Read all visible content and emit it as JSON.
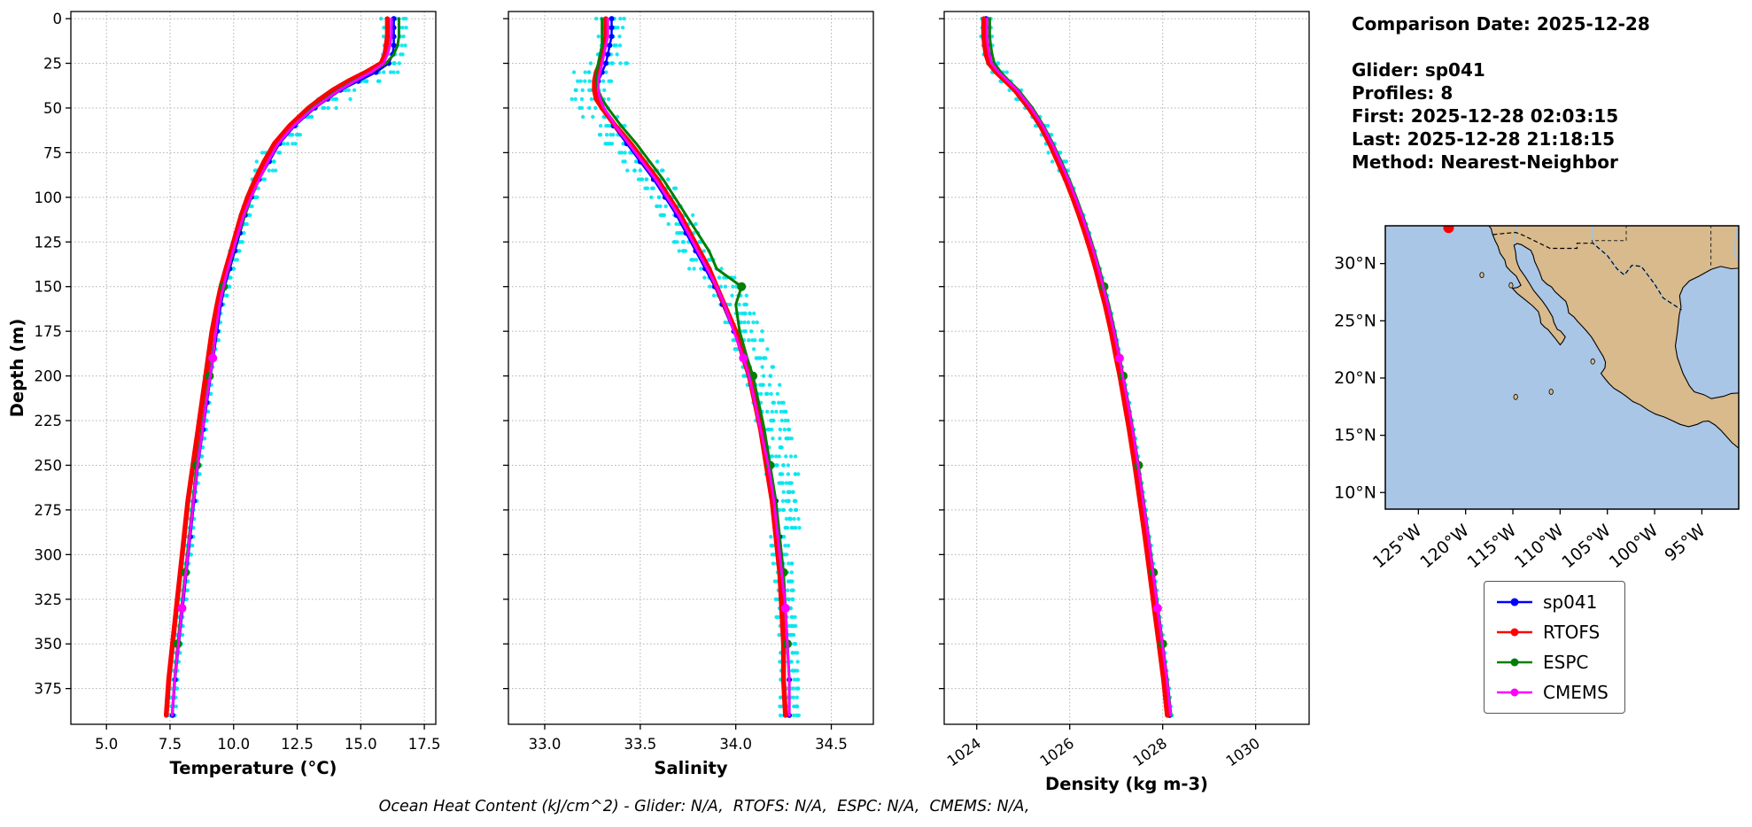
{
  "info_panel": {
    "comparison_date": "Comparison Date: 2025-12-28",
    "glider": "Glider: sp041",
    "profiles": "Profiles: 8",
    "first": "First: 2025-12-28 02:03:15",
    "last": "Last: 2025-12-28 21:18:15",
    "method": "Method: Nearest-Neighbor"
  },
  "footer_note": "Ocean Heat Content (kJ/cm^2) - Glider: N/A,  RTOFS: N/A,  ESPC: N/A,  CMEMS: N/A,",
  "legend": {
    "items": [
      {
        "label": "sp041",
        "color": "#0000ff"
      },
      {
        "label": "RTOFS",
        "color": "#ff0000"
      },
      {
        "label": "ESPC",
        "color": "#007f00"
      },
      {
        "label": "CMEMS",
        "color": "#ff00ff"
      }
    ]
  },
  "map": {
    "ocean_color": "#a9c6e6",
    "land_color": "#d9ba8c",
    "glider_marker_color": "#ff0000",
    "lat_ticks": [
      {
        "label": "30°N",
        "value": 30
      },
      {
        "label": "25°N",
        "value": 25
      },
      {
        "label": "20°N",
        "value": 20
      },
      {
        "label": "15°N",
        "value": 15
      },
      {
        "label": "10°N",
        "value": 10
      }
    ],
    "lon_ticks": [
      {
        "label": "125°W",
        "value": -125
      },
      {
        "label": "120°W",
        "value": -120
      },
      {
        "label": "115°W",
        "value": -115
      },
      {
        "label": "110°W",
        "value": -110
      },
      {
        "label": "105°W",
        "value": -105
      },
      {
        "label": "100°W",
        "value": -100
      },
      {
        "label": "95°W",
        "value": -95
      }
    ]
  },
  "chart_data": [
    {
      "type": "line",
      "name": "temperature",
      "xlabel": "Temperature (°C)",
      "ylabel": "Depth (m)",
      "xlim": [
        3.6,
        17.95
      ],
      "ylim": [
        -4,
        395
      ],
      "xticks": {
        "values": [
          5.0,
          7.5,
          10.0,
          12.5,
          15.0,
          17.5
        ],
        "labels": [
          "5.0",
          "7.5",
          "10.0",
          "12.5",
          "15.0",
          "17.5"
        ],
        "rotate": false
      },
      "yticks": {
        "values": [
          0,
          25,
          50,
          75,
          100,
          125,
          150,
          175,
          200,
          225,
          250,
          275,
          300,
          325,
          350,
          375
        ],
        "labels": [
          "0",
          "25",
          "50",
          "75",
          "100",
          "125",
          "150",
          "175",
          "200",
          "225",
          "250",
          "275",
          "300",
          "325",
          "350",
          "375"
        ]
      },
      "depths": [
        0,
        5,
        10,
        15,
        20,
        25,
        30,
        35,
        40,
        45,
        50,
        60,
        70,
        80,
        90,
        100,
        110,
        120,
        130,
        140,
        150,
        160,
        175,
        190,
        200,
        215,
        230,
        250,
        270,
        290,
        310,
        330,
        350,
        370,
        390
      ],
      "series": [
        {
          "name": "sp041",
          "color": "#0000ff",
          "values": [
            16.3,
            16.3,
            16.3,
            16.3,
            16.25,
            16.1,
            15.6,
            14.9,
            14.2,
            13.7,
            13.2,
            12.4,
            11.8,
            11.4,
            11.0,
            10.7,
            10.45,
            10.25,
            10.05,
            9.85,
            9.65,
            9.5,
            9.35,
            9.2,
            9.1,
            8.95,
            8.8,
            8.6,
            8.45,
            8.3,
            8.15,
            8.0,
            7.85,
            7.7,
            7.6
          ]
        },
        {
          "name": "RTOFS",
          "color": "#ff0000",
          "values": [
            16.05,
            16.05,
            16.05,
            16.0,
            15.95,
            15.8,
            15.2,
            14.5,
            13.9,
            13.4,
            12.95,
            12.2,
            11.6,
            11.2,
            10.85,
            10.55,
            10.3,
            10.1,
            9.9,
            9.7,
            9.5,
            9.35,
            9.15,
            9.0,
            8.9,
            8.75,
            8.6,
            8.4,
            8.2,
            8.05,
            7.9,
            7.75,
            7.6,
            7.45,
            7.35
          ]
        },
        {
          "name": "ESPC",
          "color": "#007f00",
          "values": [
            16.5,
            16.5,
            16.5,
            16.45,
            16.3,
            16.0,
            15.4,
            14.7,
            14.1,
            13.6,
            13.1,
            12.35,
            11.75,
            11.35,
            11.0,
            10.7,
            10.45,
            10.2,
            10.0,
            9.8,
            9.6,
            9.45,
            9.3,
            9.15,
            9.05,
            8.9,
            8.75,
            8.55,
            8.4,
            8.25,
            8.1,
            7.95,
            7.8,
            7.68,
            7.58
          ]
        },
        {
          "name": "CMEMS",
          "color": "#ff00ff",
          "values": [
            16.2,
            16.2,
            16.2,
            16.15,
            16.05,
            15.9,
            15.4,
            14.75,
            14.15,
            13.65,
            13.15,
            12.35,
            11.75,
            11.35,
            11.0,
            10.68,
            10.4,
            10.18,
            9.98,
            9.78,
            9.6,
            9.45,
            9.3,
            9.18,
            9.08,
            8.92,
            8.78,
            8.58,
            8.42,
            8.27,
            8.12,
            7.97,
            7.83,
            7.68,
            7.58
          ]
        }
      ],
      "scatter": {
        "name": "glider-raw-measurements",
        "color": "#00e5ee"
      }
    },
    {
      "type": "line",
      "name": "salinity",
      "xlabel": "Salinity",
      "ylabel": "Depth (m)",
      "xlim": [
        32.81,
        34.72
      ],
      "ylim": [
        -4,
        395
      ],
      "xticks": {
        "values": [
          33.0,
          33.5,
          34.0,
          34.5
        ],
        "labels": [
          "33.0",
          "33.5",
          "34.0",
          "34.5"
        ],
        "rotate": false
      },
      "yticks": {
        "values": [
          0,
          25,
          50,
          75,
          100,
          125,
          150,
          175,
          200,
          225,
          250,
          275,
          300,
          325,
          350,
          375
        ],
        "labels": [
          "0",
          "25",
          "50",
          "75",
          "100",
          "125",
          "150",
          "175",
          "200",
          "225",
          "250",
          "275",
          "300",
          "325",
          "350",
          "375"
        ]
      },
      "depths": [
        0,
        5,
        10,
        15,
        20,
        25,
        30,
        35,
        40,
        45,
        50,
        60,
        70,
        80,
        90,
        100,
        110,
        120,
        130,
        140,
        150,
        160,
        175,
        190,
        200,
        215,
        230,
        250,
        270,
        290,
        310,
        330,
        350,
        370,
        390
      ],
      "series": [
        {
          "name": "sp041",
          "color": "#0000ff",
          "values": [
            33.35,
            33.35,
            33.35,
            33.34,
            33.33,
            33.32,
            33.3,
            33.28,
            33.27,
            33.28,
            33.3,
            33.36,
            33.43,
            33.5,
            33.57,
            33.63,
            33.69,
            33.74,
            33.79,
            33.84,
            33.89,
            33.93,
            33.99,
            34.04,
            34.07,
            34.11,
            34.14,
            34.18,
            34.21,
            34.23,
            34.25,
            34.26,
            34.27,
            34.28,
            34.28
          ]
        },
        {
          "name": "RTOFS",
          "color": "#ff0000",
          "values": [
            33.32,
            33.32,
            33.32,
            33.31,
            33.3,
            33.29,
            33.27,
            33.26,
            33.26,
            33.27,
            33.3,
            33.37,
            33.45,
            33.52,
            33.59,
            33.65,
            33.71,
            33.76,
            33.81,
            33.86,
            33.9,
            33.94,
            34.0,
            34.04,
            34.07,
            34.1,
            34.13,
            34.16,
            34.19,
            34.21,
            34.23,
            34.24,
            34.25,
            34.25,
            34.26
          ]
        },
        {
          "name": "ESPC",
          "color": "#007f00",
          "values": [
            33.3,
            33.3,
            33.3,
            33.3,
            33.29,
            33.28,
            33.27,
            33.27,
            33.28,
            33.3,
            33.33,
            33.4,
            33.48,
            33.55,
            33.62,
            33.68,
            33.74,
            33.8,
            33.86,
            33.9,
            34.03,
            34.0,
            34.02,
            34.06,
            34.09,
            34.12,
            34.15,
            34.18,
            34.21,
            34.23,
            34.25,
            34.26,
            34.27,
            34.28,
            34.28
          ]
        },
        {
          "name": "CMEMS",
          "color": "#ff00ff",
          "values": [
            33.33,
            33.33,
            33.33,
            33.32,
            33.31,
            33.3,
            33.29,
            33.28,
            33.28,
            33.29,
            33.31,
            33.37,
            33.44,
            33.51,
            33.58,
            33.64,
            33.7,
            33.75,
            33.8,
            33.85,
            33.9,
            33.94,
            33.99,
            34.04,
            34.07,
            34.1,
            34.13,
            34.17,
            34.2,
            34.22,
            34.24,
            34.26,
            34.27,
            34.28,
            34.28
          ]
        }
      ],
      "scatter": {
        "name": "glider-raw-measurements",
        "color": "#00e5ee"
      }
    },
    {
      "type": "line",
      "name": "density",
      "xlabel": "Density (kg m-3)",
      "ylabel": "Depth (m)",
      "xlim": [
        1023.3,
        1031.15
      ],
      "ylim": [
        -4,
        395
      ],
      "xticks": {
        "values": [
          1024,
          1026,
          1028,
          1030
        ],
        "labels": [
          "1024",
          "1026",
          "1028",
          "1030"
        ],
        "rotate": true
      },
      "yticks": {
        "values": [
          0,
          25,
          50,
          75,
          100,
          125,
          150,
          175,
          200,
          225,
          250,
          275,
          300,
          325,
          350,
          375
        ],
        "labels": [
          "0",
          "25",
          "50",
          "75",
          "100",
          "125",
          "150",
          "175",
          "200",
          "225",
          "250",
          "275",
          "300",
          "325",
          "350",
          "375"
        ]
      },
      "depths": [
        0,
        5,
        10,
        15,
        20,
        25,
        30,
        35,
        40,
        45,
        50,
        60,
        70,
        80,
        90,
        100,
        110,
        120,
        130,
        140,
        150,
        160,
        175,
        190,
        200,
        215,
        230,
        250,
        270,
        290,
        310,
        330,
        350,
        370,
        390
      ],
      "series": [
        {
          "name": "sp041",
          "color": "#0000ff",
          "values": [
            1024.2,
            1024.2,
            1024.2,
            1024.22,
            1024.25,
            1024.3,
            1024.45,
            1024.65,
            1024.85,
            1025.0,
            1025.15,
            1025.4,
            1025.6,
            1025.78,
            1025.95,
            1026.1,
            1026.24,
            1026.37,
            1026.49,
            1026.6,
            1026.7,
            1026.8,
            1026.93,
            1027.05,
            1027.12,
            1027.23,
            1027.33,
            1027.45,
            1027.56,
            1027.67,
            1027.77,
            1027.87,
            1027.97,
            1028.07,
            1028.15
          ]
        },
        {
          "name": "RTOFS",
          "color": "#ff0000",
          "values": [
            1024.15,
            1024.15,
            1024.15,
            1024.17,
            1024.2,
            1024.26,
            1024.42,
            1024.62,
            1024.82,
            1024.97,
            1025.12,
            1025.37,
            1025.57,
            1025.74,
            1025.91,
            1026.06,
            1026.2,
            1026.33,
            1026.45,
            1026.56,
            1026.66,
            1026.76,
            1026.89,
            1027.0,
            1027.08,
            1027.18,
            1027.28,
            1027.4,
            1027.51,
            1027.62,
            1027.72,
            1027.82,
            1027.92,
            1028.02,
            1028.1
          ]
        },
        {
          "name": "ESPC",
          "color": "#007f00",
          "values": [
            1024.28,
            1024.28,
            1024.28,
            1024.3,
            1024.33,
            1024.38,
            1024.52,
            1024.7,
            1024.9,
            1025.05,
            1025.2,
            1025.44,
            1025.64,
            1025.82,
            1025.99,
            1026.14,
            1026.28,
            1026.41,
            1026.53,
            1026.64,
            1026.74,
            1026.84,
            1026.97,
            1027.08,
            1027.15,
            1027.26,
            1027.36,
            1027.48,
            1027.59,
            1027.7,
            1027.8,
            1027.9,
            1028.0,
            1028.1,
            1028.18
          ]
        },
        {
          "name": "CMEMS",
          "color": "#ff00ff",
          "values": [
            1024.22,
            1024.22,
            1024.22,
            1024.24,
            1024.27,
            1024.32,
            1024.47,
            1024.67,
            1024.87,
            1025.02,
            1025.17,
            1025.42,
            1025.62,
            1025.8,
            1025.97,
            1026.12,
            1026.26,
            1026.39,
            1026.51,
            1026.62,
            1026.72,
            1026.82,
            1026.95,
            1027.07,
            1027.14,
            1027.25,
            1027.35,
            1027.47,
            1027.58,
            1027.69,
            1027.79,
            1027.89,
            1027.99,
            1028.09,
            1028.17
          ]
        }
      ],
      "scatter": {
        "name": "glider-raw-measurements",
        "color": "#00e5ee"
      }
    }
  ]
}
